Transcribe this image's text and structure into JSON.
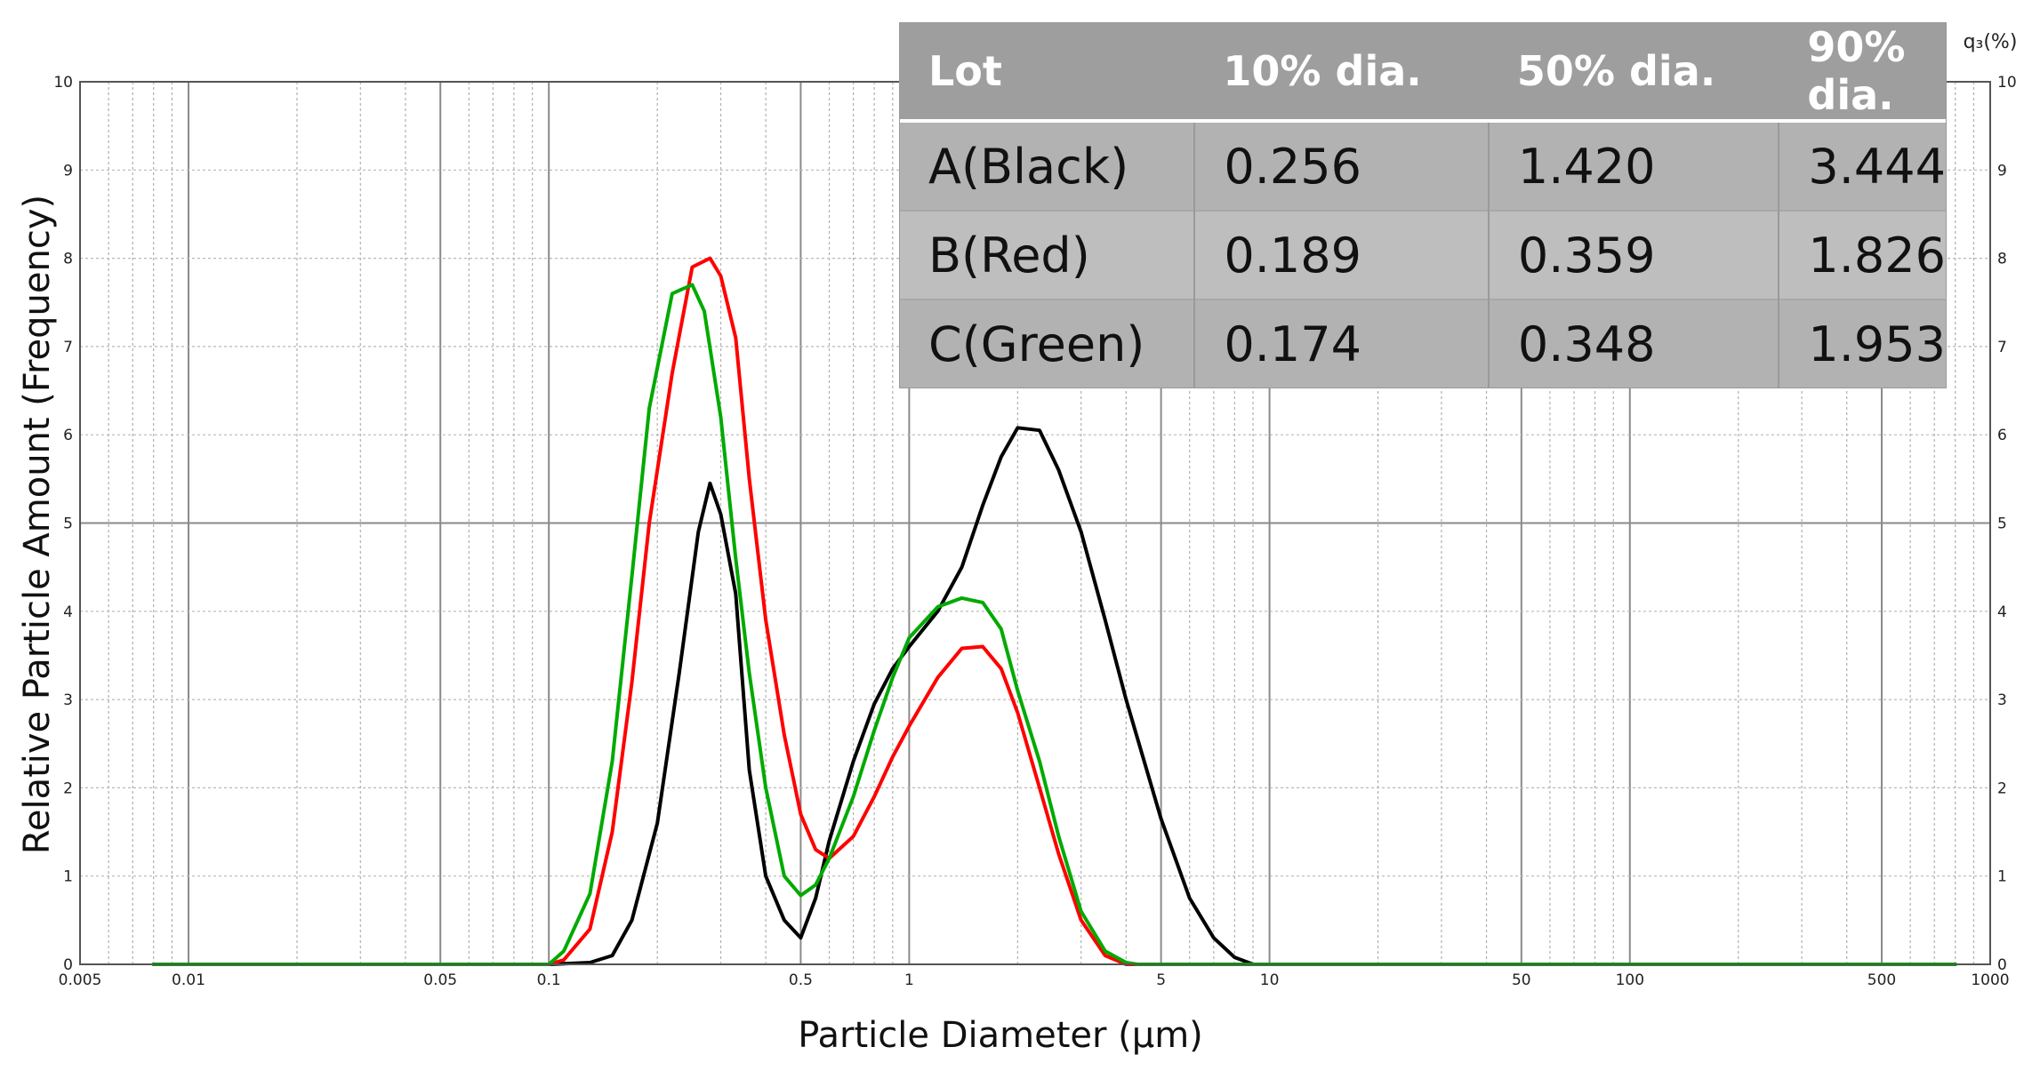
{
  "chart_data": {
    "type": "line",
    "xlabel": "Particle Diameter (µm)",
    "ylabel": "Relative Particle Amount (Frequency)",
    "right_axis_label": "q₃(%)",
    "x_scale": "log",
    "xlim": [
      0.005,
      1000
    ],
    "ylim": [
      0,
      10
    ],
    "grid": true,
    "x_tick_labels": [
      {
        "value": 0.005,
        "label": "0.005"
      },
      {
        "value": 0.01,
        "label": "0.01"
      },
      {
        "value": 0.05,
        "label": "0.05"
      },
      {
        "value": 0.1,
        "label": "0.1"
      },
      {
        "value": 0.5,
        "label": "0.5"
      },
      {
        "value": 1,
        "label": "1"
      },
      {
        "value": 5,
        "label": "5"
      },
      {
        "value": 10,
        "label": "10"
      },
      {
        "value": 50,
        "label": "50"
      },
      {
        "value": 100,
        "label": "100"
      },
      {
        "value": 500,
        "label": "500"
      },
      {
        "value": 1000,
        "label": "1000"
      }
    ],
    "y_tick_labels": [
      "0",
      "1",
      "2",
      "3",
      "4",
      "5",
      "6",
      "7",
      "8",
      "9",
      "10"
    ],
    "series": [
      {
        "color": "#000000",
        "x": [
          0.008,
          0.1,
          0.13,
          0.15,
          0.17,
          0.2,
          0.23,
          0.26,
          0.28,
          0.3,
          0.33,
          0.36,
          0.4,
          0.45,
          0.5,
          0.55,
          0.6,
          0.7,
          0.8,
          0.9,
          1.0,
          1.2,
          1.4,
          1.6,
          1.8,
          2.0,
          2.3,
          2.6,
          3.0,
          3.5,
          4.0,
          5.0,
          6.0,
          7.0,
          8.0,
          9.0,
          800
        ],
        "y": [
          0,
          0,
          0.02,
          0.1,
          0.5,
          1.6,
          3.3,
          4.9,
          5.45,
          5.1,
          4.2,
          2.2,
          1.0,
          0.5,
          0.3,
          0.75,
          1.4,
          2.3,
          2.95,
          3.35,
          3.6,
          4.0,
          4.5,
          5.2,
          5.75,
          6.08,
          6.05,
          5.6,
          4.9,
          3.9,
          3.0,
          1.65,
          0.75,
          0.3,
          0.08,
          0.0,
          0
        ]
      },
      {
        "color": "#ff0000",
        "x": [
          0.008,
          0.1,
          0.11,
          0.13,
          0.15,
          0.17,
          0.19,
          0.22,
          0.25,
          0.28,
          0.3,
          0.33,
          0.36,
          0.4,
          0.45,
          0.5,
          0.55,
          0.6,
          0.7,
          0.8,
          0.9,
          1.0,
          1.2,
          1.4,
          1.6,
          1.8,
          2.0,
          2.3,
          2.6,
          3.0,
          3.5,
          4.0,
          800
        ],
        "y": [
          0,
          0,
          0.05,
          0.4,
          1.5,
          3.2,
          5.0,
          6.7,
          7.9,
          8.0,
          7.8,
          7.1,
          5.5,
          3.9,
          2.6,
          1.7,
          1.3,
          1.2,
          1.45,
          1.9,
          2.35,
          2.7,
          3.25,
          3.58,
          3.6,
          3.35,
          2.85,
          2.0,
          1.25,
          0.5,
          0.1,
          0.0,
          0
        ]
      },
      {
        "color": "#00aa00",
        "x": [
          0.008,
          0.1,
          0.11,
          0.13,
          0.15,
          0.17,
          0.19,
          0.22,
          0.25,
          0.27,
          0.3,
          0.33,
          0.36,
          0.4,
          0.45,
          0.5,
          0.55,
          0.6,
          0.7,
          0.8,
          0.9,
          1.0,
          1.2,
          1.4,
          1.6,
          1.8,
          2.0,
          2.3,
          2.6,
          3.0,
          3.5,
          4.0,
          4.3,
          800
        ],
        "y": [
          0,
          0,
          0.15,
          0.8,
          2.3,
          4.4,
          6.3,
          7.6,
          7.7,
          7.4,
          6.2,
          4.6,
          3.3,
          2.0,
          1.0,
          0.78,
          0.9,
          1.2,
          1.9,
          2.65,
          3.25,
          3.7,
          4.05,
          4.15,
          4.1,
          3.8,
          3.1,
          2.3,
          1.45,
          0.6,
          0.15,
          0.02,
          0,
          0
        ]
      }
    ]
  },
  "table": {
    "headers": [
      "Lot",
      "10% dia.",
      "50% dia.",
      "90% dia."
    ],
    "rows": [
      [
        "A(Black)",
        "0.256",
        "1.420",
        "3.444"
      ],
      [
        "B(Red)",
        "0.189",
        "0.359",
        "1.826"
      ],
      [
        "C(Green)",
        "0.174",
        "0.348",
        "1.953"
      ]
    ]
  }
}
